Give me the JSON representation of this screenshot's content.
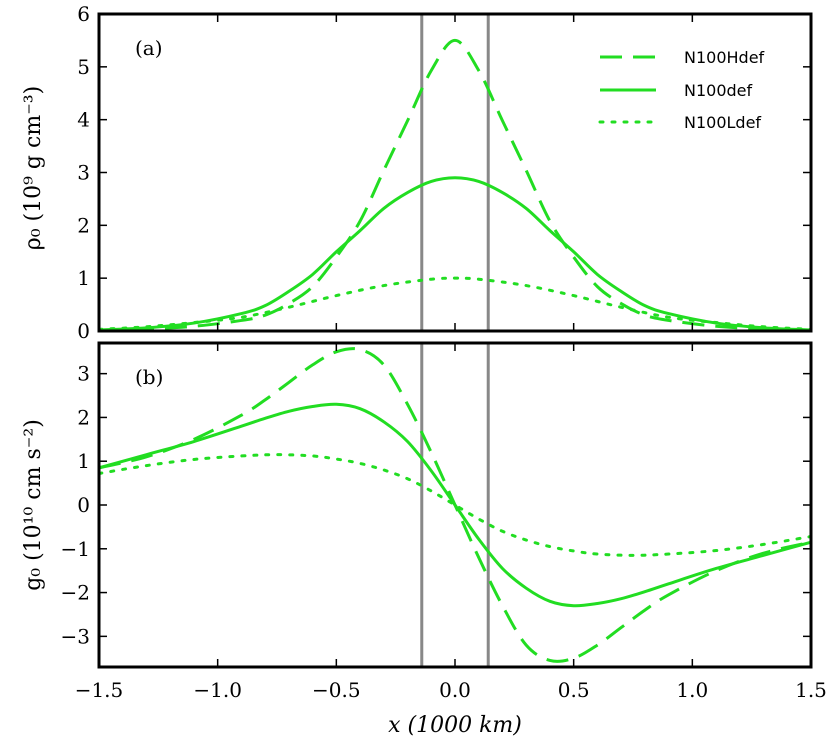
{
  "chart_data": [
    {
      "id": "a",
      "type": "line",
      "panel_label": "(a)",
      "ylabel": "ρ₀ (10⁹ g cm⁻³)",
      "xlim": [
        -1.5,
        1.5
      ],
      "ylim": [
        0,
        6
      ],
      "yticks": [
        0,
        1,
        2,
        3,
        4,
        5,
        6
      ],
      "ytick_labels": [
        "0",
        "1",
        "2",
        "3",
        "4",
        "5",
        "6"
      ],
      "vlines": [
        -0.14,
        0.14
      ],
      "legend": {
        "placement": "top-right",
        "entries": [
          "N100Hdef",
          "N100def",
          "N100Ldef"
        ]
      },
      "series": [
        {
          "name": "N100Hdef",
          "style": "dashed",
          "x": [
            -1.5,
            -1.3,
            -1.1,
            -0.9,
            -0.8,
            -0.7,
            -0.6,
            -0.5,
            -0.4,
            -0.3,
            -0.2,
            -0.1,
            0.0,
            0.1,
            0.2,
            0.3,
            0.4,
            0.5,
            0.6,
            0.7,
            0.8,
            0.9,
            1.1,
            1.3,
            1.5
          ],
          "values": [
            0.01,
            0.04,
            0.09,
            0.2,
            0.3,
            0.52,
            0.84,
            1.4,
            2.08,
            3.04,
            3.98,
            4.93,
            5.5,
            4.93,
            3.98,
            3.04,
            2.08,
            1.4,
            0.84,
            0.52,
            0.3,
            0.2,
            0.09,
            0.04,
            0.01
          ]
        },
        {
          "name": "N100def",
          "style": "solid",
          "x": [
            -1.5,
            -1.3,
            -1.1,
            -0.9,
            -0.8,
            -0.7,
            -0.6,
            -0.5,
            -0.4,
            -0.3,
            -0.2,
            -0.1,
            0.0,
            0.1,
            0.2,
            0.3,
            0.4,
            0.5,
            0.6,
            0.7,
            0.8,
            0.9,
            1.1,
            1.3,
            1.5
          ],
          "values": [
            0.02,
            0.06,
            0.15,
            0.33,
            0.48,
            0.75,
            1.07,
            1.5,
            1.9,
            2.32,
            2.62,
            2.83,
            2.9,
            2.83,
            2.62,
            2.32,
            1.9,
            1.5,
            1.07,
            0.75,
            0.48,
            0.33,
            0.15,
            0.06,
            0.02
          ]
        },
        {
          "name": "N100Ldef",
          "style": "dotted",
          "x": [
            -1.5,
            -1.3,
            -1.1,
            -0.9,
            -0.7,
            -0.5,
            -0.3,
            -0.1,
            0.0,
            0.1,
            0.3,
            0.5,
            0.7,
            0.9,
            1.1,
            1.3,
            1.5
          ],
          "values": [
            0.03,
            0.08,
            0.16,
            0.26,
            0.45,
            0.67,
            0.86,
            0.98,
            1.0,
            0.98,
            0.86,
            0.67,
            0.45,
            0.26,
            0.16,
            0.08,
            0.03
          ]
        }
      ]
    },
    {
      "id": "b",
      "type": "line",
      "panel_label": "(b)",
      "xlabel": "x (1000 km)",
      "ylabel": "g₀ (10¹⁰ cm s⁻²)",
      "xlim": [
        -1.5,
        1.5
      ],
      "ylim": [
        -3.7,
        3.7
      ],
      "xticks": [
        -1.5,
        -1.0,
        -0.5,
        0.0,
        0.5,
        1.0,
        1.5
      ],
      "xtick_labels": [
        "−1.5",
        "−1.0",
        "−0.5",
        "0.0",
        "0.5",
        "1.0",
        "1.5"
      ],
      "yticks": [
        -3,
        -2,
        -1,
        0,
        1,
        2,
        3
      ],
      "ytick_labels": [
        "−3",
        "−2",
        "−1",
        "0",
        "1",
        "2",
        "3"
      ],
      "vlines": [
        -0.14,
        0.14
      ],
      "series": [
        {
          "name": "N100Hdef",
          "style": "dashed",
          "x": [
            -1.5,
            -1.3,
            -1.1,
            -0.9,
            -0.8,
            -0.7,
            -0.6,
            -0.5,
            -0.4,
            -0.3,
            -0.2,
            -0.1,
            0.0,
            0.1,
            0.2,
            0.3,
            0.4,
            0.5,
            0.6,
            0.7,
            0.8,
            0.9,
            1.1,
            1.3,
            1.5
          ],
          "values": [
            0.85,
            1.1,
            1.5,
            2.05,
            2.4,
            2.8,
            3.2,
            3.5,
            3.55,
            3.2,
            2.3,
            1.2,
            0.0,
            -1.2,
            -2.3,
            -3.2,
            -3.55,
            -3.5,
            -3.2,
            -2.8,
            -2.4,
            -2.05,
            -1.5,
            -1.1,
            -0.85
          ]
        },
        {
          "name": "N100def",
          "style": "solid",
          "x": [
            -1.5,
            -1.3,
            -1.1,
            -0.9,
            -0.8,
            -0.7,
            -0.6,
            -0.5,
            -0.4,
            -0.3,
            -0.2,
            -0.1,
            0.0,
            0.1,
            0.2,
            0.3,
            0.4,
            0.5,
            0.6,
            0.7,
            0.8,
            0.9,
            1.1,
            1.3,
            1.5
          ],
          "values": [
            0.85,
            1.15,
            1.45,
            1.8,
            1.98,
            2.14,
            2.25,
            2.3,
            2.2,
            1.9,
            1.45,
            0.78,
            0.0,
            -0.78,
            -1.45,
            -1.9,
            -2.2,
            -2.3,
            -2.25,
            -2.14,
            -1.98,
            -1.8,
            -1.45,
            -1.15,
            -0.85
          ]
        },
        {
          "name": "N100Ldef",
          "style": "dotted",
          "x": [
            -1.5,
            -1.3,
            -1.1,
            -0.9,
            -0.75,
            -0.6,
            -0.5,
            -0.4,
            -0.3,
            -0.2,
            -0.1,
            0.0,
            0.1,
            0.2,
            0.3,
            0.4,
            0.5,
            0.6,
            0.75,
            0.9,
            1.1,
            1.3,
            1.5
          ],
          "values": [
            0.72,
            0.9,
            1.04,
            1.12,
            1.15,
            1.12,
            1.05,
            0.95,
            0.8,
            0.6,
            0.32,
            0.0,
            -0.32,
            -0.6,
            -0.8,
            -0.95,
            -1.05,
            -1.12,
            -1.15,
            -1.12,
            -1.04,
            -0.9,
            -0.72
          ]
        }
      ]
    }
  ],
  "colors": {
    "series": "#22dd22",
    "vline": "#888888",
    "axis": "#000000"
  }
}
